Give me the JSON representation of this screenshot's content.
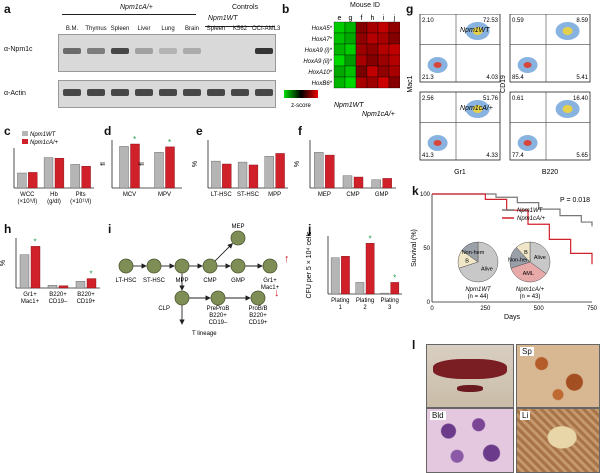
{
  "panels": {
    "a": {
      "letter": "a",
      "group_label": "Npm1cA/+",
      "controls_label": "Controls",
      "controls_sub": "Npm1WT",
      "lanes": [
        "B.M.",
        "Thymus",
        "Spleen",
        "Liver",
        "Lung",
        "Brain",
        "Spleen",
        "K562",
        "OCI-AML3"
      ],
      "row_labels": [
        "α-Npm1c",
        "α-Actin"
      ],
      "npm1c_intensity": [
        0.6,
        0.5,
        0.8,
        0.3,
        0.2,
        0.25,
        0,
        0,
        0.9
      ],
      "actin_intensity": [
        0.8,
        0.8,
        0.8,
        0.8,
        0.8,
        0.8,
        0.8,
        0.8,
        0.8
      ]
    },
    "b": {
      "letter": "b",
      "title": "Mouse ID",
      "columns": [
        "e",
        "g",
        "f",
        "h",
        "i",
        "j"
      ],
      "rows": [
        "HoxA5*",
        "HoxA7*",
        "HoxA9 (i)*",
        "HoxA9 (ii)*",
        "HoxA10*",
        "HoxB6*"
      ],
      "values": [
        [
          -1.2,
          -1.0,
          0.6,
          0.9,
          1.1,
          0.7
        ],
        [
          -1.1,
          -0.9,
          0.7,
          1.0,
          0.9,
          0.6
        ],
        [
          -1.0,
          -1.2,
          0.8,
          0.7,
          1.0,
          1.1
        ],
        [
          -1.3,
          -0.8,
          0.9,
          0.6,
          0.8,
          1.0
        ],
        [
          -0.9,
          -1.1,
          0.5,
          1.1,
          0.7,
          0.9
        ],
        [
          -1.0,
          -1.3,
          0.9,
          0.8,
          1.2,
          0.6
        ]
      ],
      "scale_label": "z-score",
      "group_wt": "Npm1WT",
      "group_mut": "Npm1cA/+"
    },
    "c": {
      "letter": "c",
      "legend": [
        "Npm1WT",
        "Npm1cA/+"
      ],
      "categories": [
        "WCC (×10⁹/l)",
        "Hb (g/dl)",
        "Plts (×10¹¹/l)"
      ],
      "wt": [
        7.5,
        15.2,
        11.8
      ],
      "mut": [
        7.8,
        14.9,
        10.9
      ]
    },
    "d": {
      "letter": "d",
      "categories": [
        "MCV",
        "MPV"
      ],
      "ylabels": [
        "fl",
        "fl"
      ],
      "wt": [
        52,
        5.2
      ],
      "mut": [
        55,
        6.0
      ],
      "star": "*"
    },
    "e": {
      "letter": "e",
      "ylabel": "%",
      "categories": [
        "LT-HSC",
        "ST-HSC",
        "MPP"
      ],
      "wt": [
        28,
        27,
        33
      ],
      "mut": [
        25,
        24,
        36
      ]
    },
    "f": {
      "letter": "f",
      "ylabel": "%",
      "categories": [
        "MEP",
        "CMP",
        "GMP"
      ],
      "wt": [
        52,
        18,
        12
      ],
      "mut": [
        48,
        16,
        14
      ]
    },
    "g": {
      "letter": "g",
      "left_y": "Mac1",
      "left_x": "Gr1",
      "right_y": "CD19",
      "right_x": "B220",
      "plots": [
        {
          "label": "Npm1WT",
          "q_tl": "2.10",
          "q_tr": "72.53",
          "q_bl": "21.3",
          "q_br": "4.03"
        },
        {
          "label": "Npm1cA/+",
          "q_tl": "2.56",
          "q_tr": "51.76",
          "q_bl": "41.3",
          "q_br": "4.33"
        },
        {
          "label": "",
          "q_tl": "0.59",
          "q_tr": "8.59",
          "q_bl": "85.4",
          "q_br": "5.41"
        },
        {
          "label": "",
          "q_tl": "0.61",
          "q_tr": "16.40",
          "q_bl": "77.4",
          "q_br": "5.65"
        }
      ]
    },
    "h": {
      "letter": "h",
      "ylabel": "%",
      "categories": [
        "Gr1+ Mac1+",
        "B220+ CD19–",
        "B220+ CD19+"
      ],
      "wt": [
        60,
        5,
        12
      ],
      "mut": [
        75,
        4,
        17
      ],
      "star": "*"
    },
    "i": {
      "letter": "i",
      "nodes": [
        "LT-HSC",
        "ST-HSC",
        "MPP",
        "CMP",
        "MEP",
        "GMP",
        "Gr1+ Mac1+",
        "CLP",
        "PreProB B220+ CD19–",
        "ProB/B B220+ CD19+",
        "T lineage"
      ]
    },
    "j": {
      "letter": "j",
      "ylabel": "CFU per 5 × 10⁴ cells",
      "categories": [
        "Plating 1",
        "Plating 2",
        "Plating 3"
      ],
      "wt": [
        125,
        40,
        3
      ],
      "mut": [
        130,
        175,
        40
      ],
      "ylim": [
        0,
        200
      ],
      "star": "*"
    },
    "k": {
      "letter": "k",
      "pvalue": "P = 0.018",
      "legend": [
        "Npm1WT",
        "Npm1cA/+"
      ],
      "xlabel": "Days",
      "ylabel": "Survival (%)",
      "xticks": [
        "0",
        "250",
        "500",
        "750"
      ],
      "yticks": [
        "0",
        "50",
        "100"
      ],
      "pie_wt": {
        "labels": [
          "Alive",
          "B",
          "Non-hem"
        ],
        "n": "(n = 44)",
        "name": "Npm1WT"
      },
      "pie_mut": {
        "labels": [
          "Alive",
          "AML",
          "Non-hem",
          "B"
        ],
        "n": "(n = 43)",
        "name": "Npm1cA/+"
      }
    },
    "l": {
      "letter": "l",
      "photos": [
        "Sp",
        "Bld",
        "Li"
      ]
    }
  },
  "chart_data": [
    {
      "type": "bar",
      "title": "",
      "categories": [
        "WCC (×10⁹/l)",
        "Hb (g/dl)",
        "Plts (×10¹¹/l)"
      ],
      "series": [
        {
          "name": "Npm1WT",
          "values": [
            7.5,
            15.2,
            11.8
          ]
        },
        {
          "name": "Npm1cA/+",
          "values": [
            7.8,
            14.9,
            10.9
          ]
        }
      ]
    },
    {
      "type": "bar",
      "title": "",
      "categories": [
        "MCV",
        "MPV"
      ],
      "series": [
        {
          "name": "Npm1WT",
          "values": [
            52,
            5.2
          ]
        },
        {
          "name": "Npm1cA/+",
          "values": [
            55,
            6.0
          ]
        }
      ]
    },
    {
      "type": "bar",
      "title": "",
      "categories": [
        "LT-HSC",
        "ST-HSC",
        "MPP"
      ],
      "series": [
        {
          "name": "Npm1WT",
          "values": [
            28,
            27,
            33
          ]
        },
        {
          "name": "Npm1cA/+",
          "values": [
            25,
            24,
            36
          ]
        }
      ]
    },
    {
      "type": "bar",
      "title": "",
      "categories": [
        "MEP",
        "CMP",
        "GMP"
      ],
      "series": [
        {
          "name": "Npm1WT",
          "values": [
            52,
            18,
            12
          ]
        },
        {
          "name": "Npm1cA/+",
          "values": [
            48,
            16,
            14
          ]
        }
      ]
    },
    {
      "type": "bar",
      "title": "",
      "categories": [
        "Gr1+ Mac1+",
        "B220+ CD19–",
        "B220+ CD19+"
      ],
      "series": [
        {
          "name": "Npm1WT",
          "values": [
            60,
            5,
            12
          ]
        },
        {
          "name": "Npm1cA/+",
          "values": [
            75,
            4,
            17
          ]
        }
      ]
    },
    {
      "type": "bar",
      "title": "",
      "categories": [
        "Plating 1",
        "Plating 2",
        "Plating 3"
      ],
      "series": [
        {
          "name": "Npm1WT",
          "values": [
            125,
            40,
            3
          ]
        },
        {
          "name": "Npm1cA/+",
          "values": [
            130,
            175,
            40
          ]
        }
      ],
      "ylim": [
        0,
        200
      ]
    },
    {
      "type": "line",
      "title": "",
      "xlabel": "Days",
      "ylabel": "Survival (%)",
      "xlim": [
        0,
        750
      ],
      "ylim": [
        0,
        100
      ],
      "series": [
        {
          "name": "Npm1WT",
          "x": [
            0,
            300,
            400,
            500,
            600,
            700,
            750
          ],
          "y": [
            100,
            97,
            92,
            86,
            80,
            74,
            70
          ]
        },
        {
          "name": "Npm1cA/+",
          "x": [
            0,
            250,
            350,
            450,
            550,
            650,
            750
          ],
          "y": [
            100,
            95,
            85,
            72,
            58,
            45,
            35
          ]
        }
      ]
    },
    {
      "type": "pie",
      "title": "",
      "labels": [
        "Alive",
        "B",
        "Non-hem"
      ],
      "values": [
        70,
        15,
        15
      ]
    },
    {
      "type": "pie",
      "title": "",
      "labels": [
        "Alive",
        "AML",
        "Non-hem",
        "B"
      ],
      "values": [
        35,
        35,
        18,
        12
      ]
    }
  ],
  "colors": {
    "wt": "#b5b5b5",
    "mut": "#d0202a",
    "node": "#7f8e55",
    "pie_alive": "#c8c8c8",
    "pie_b": "#f0e6c8",
    "pie_aml": "#e8a9a9",
    "pie_nonhem": "#9aa0a8"
  }
}
